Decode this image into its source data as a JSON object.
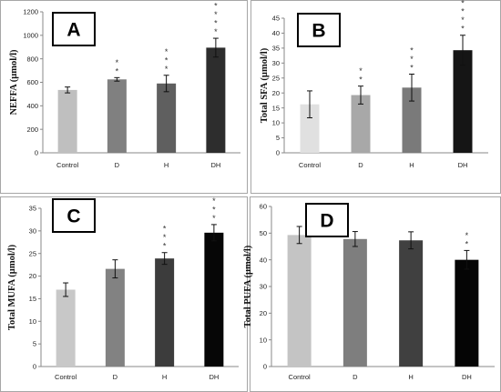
{
  "chart_data": [
    {
      "type": "bar",
      "panel_label": "A",
      "ylabel": "NEFFA (µmol/l)",
      "categories": [
        "Control",
        "D",
        "H",
        "DH"
      ],
      "values": [
        535,
        625,
        590,
        895
      ],
      "errors": [
        25,
        15,
        70,
        80
      ],
      "significance": [
        "",
        "* *",
        "* * *",
        "* * * *"
      ],
      "ylim": [
        0,
        1200
      ],
      "yticks": [
        "0",
        "200",
        "400",
        "600",
        "800",
        "1000",
        "1200"
      ],
      "colors": [
        "#bfbfbf",
        "#808080",
        "#5f5f5f",
        "#2d2d2d"
      ],
      "grid": false
    },
    {
      "type": "bar",
      "panel_label": "B",
      "ylabel": "Total SFA (µmol/l)",
      "categories": [
        "Control",
        "D",
        "H",
        "DH"
      ],
      "values": [
        16.2,
        19.3,
        21.8,
        34.3
      ],
      "errors": [
        4.5,
        3.0,
        4.5,
        5.0
      ],
      "significance": [
        "",
        "* *",
        "* * *",
        "* * * *"
      ],
      "ylim": [
        0,
        45
      ],
      "yticks": [
        "0",
        "5",
        "10",
        "15",
        "20",
        "25",
        "30",
        "35",
        "40",
        "45"
      ],
      "colors": [
        "#e0e0e0",
        "#a8a8a8",
        "#7a7a7a",
        "#151515"
      ],
      "grid": false
    },
    {
      "type": "bar",
      "panel_label": "C",
      "ylabel": "Total MUFA (µmol/l)",
      "categories": [
        "Control",
        "D",
        "H",
        "DH"
      ],
      "values": [
        17.0,
        21.6,
        23.9,
        29.6
      ],
      "errors": [
        1.5,
        2.0,
        1.3,
        1.8
      ],
      "significance": [
        "",
        "",
        "* * *",
        "* * *"
      ],
      "ylim": [
        0,
        35
      ],
      "yticks": [
        "0",
        "5",
        "10",
        "15",
        "20",
        "25",
        "30",
        "35"
      ],
      "colors": [
        "#c8c8c8",
        "#828282",
        "#3c3c3c",
        "#060606"
      ],
      "grid": false
    },
    {
      "type": "bar",
      "panel_label": "D",
      "ylabel": "Total PUFA (µmol/l)",
      "categories": [
        "Control",
        "D",
        "H",
        "DH"
      ],
      "values": [
        49.3,
        47.8,
        47.3,
        40.0
      ],
      "errors": [
        3.2,
        2.8,
        3.2,
        3.5
      ],
      "significance": [
        "",
        "",
        "",
        "* *"
      ],
      "ylim": [
        0,
        60
      ],
      "yticks": [
        "0",
        "10",
        "20",
        "30",
        "40",
        "50",
        "60"
      ],
      "colors": [
        "#c4c4c4",
        "#7e7e7e",
        "#404040",
        "#050505"
      ],
      "grid": false
    }
  ]
}
